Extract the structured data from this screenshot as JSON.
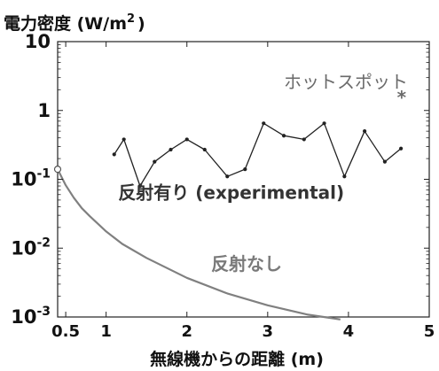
{
  "chart_data": {
    "type": "line",
    "ylabel": "電力密度 (W/m",
    "ylabel_sup": "2",
    "ylabel_close": ")",
    "xlabel": "無線機からの距離 (m)",
    "xlim": [
      0.4,
      5
    ],
    "ylim": [
      0.001,
      10
    ],
    "yscale": "log",
    "grid": false,
    "x_ticks": [
      {
        "value": 0.5,
        "label": "0.5"
      },
      {
        "value": 1,
        "label": "1"
      },
      {
        "value": 2,
        "label": "2"
      },
      {
        "value": 3,
        "label": "3"
      },
      {
        "value": 4,
        "label": "4"
      },
      {
        "value": 5,
        "label": "5"
      }
    ],
    "y_ticks": [
      {
        "value": 10,
        "base": "10",
        "exp": ""
      },
      {
        "value": 1,
        "base": "1",
        "exp": ""
      },
      {
        "value": 0.1,
        "base": "10",
        "exp": "-1"
      },
      {
        "value": 0.01,
        "base": "10",
        "exp": "-2"
      },
      {
        "value": 0.001,
        "base": "10",
        "exp": "-3"
      }
    ],
    "series": [
      {
        "name": "反射有り (experimental)",
        "color": "#222222",
        "marker": "dot",
        "x": [
          1.1,
          1.22,
          1.42,
          1.6,
          1.8,
          2.0,
          2.22,
          2.5,
          2.72,
          2.95,
          3.2,
          3.45,
          3.7,
          3.95,
          4.2,
          4.45,
          4.65
        ],
        "y": [
          0.23,
          0.38,
          0.08,
          0.18,
          0.27,
          0.38,
          0.27,
          0.11,
          0.14,
          0.65,
          0.43,
          0.38,
          0.65,
          0.11,
          0.5,
          0.18,
          0.28
        ]
      },
      {
        "name": "反射なし",
        "color": "#808080",
        "marker": "none",
        "x": [
          0.4,
          0.5,
          0.6,
          0.7,
          0.8,
          1.0,
          1.2,
          1.5,
          2.0,
          2.5,
          3.0,
          3.5,
          3.9
        ],
        "y": [
          0.14,
          0.082,
          0.054,
          0.038,
          0.029,
          0.0175,
          0.0115,
          0.0072,
          0.0037,
          0.0022,
          0.00148,
          0.00108,
          0.00092
        ]
      }
    ],
    "start_marker": {
      "x": 0.4,
      "y": 0.14,
      "style": "open-circle"
    },
    "annotations": [
      {
        "text": "反射有り (experimental)",
        "x": 1.15,
        "y": 0.052,
        "style": "dark"
      },
      {
        "text": "反射なし",
        "x": 2.3,
        "y": 0.0048,
        "style": "gray"
      },
      {
        "text": "ホットスポット",
        "x": 3.2,
        "y": 2.1,
        "style": "hotspot"
      },
      {
        "text": "*",
        "x": 4.6,
        "y": 1.25,
        "style": "hotspot-star"
      }
    ]
  }
}
